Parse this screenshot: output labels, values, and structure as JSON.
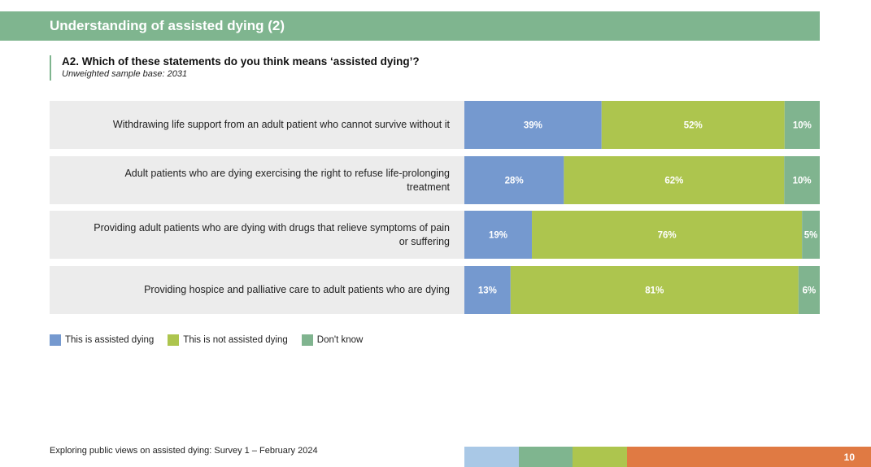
{
  "header": {
    "title": "Understanding of assisted dying (2)"
  },
  "question": {
    "text": "A2. Which of these statements do you think means ‘assisted dying’?",
    "base": "Unweighted sample base: 2031"
  },
  "legend": {
    "items": [
      {
        "label": "This is assisted dying",
        "color": "#7599cf"
      },
      {
        "label": "This is not assisted dying",
        "color": "#adc54e"
      },
      {
        "label": "Don't know",
        "color": "#80b48f"
      }
    ]
  },
  "chart_data": {
    "type": "bar",
    "orientation": "horizontal",
    "stacked": true,
    "normalized": true,
    "title": "A2. Which of these statements do you think means ‘assisted dying’?",
    "categories": [
      "Withdrawing life support from an adult patient who cannot survive without it",
      "Adult patients who are dying exercising the right to refuse life-prolonging treatment",
      "Providing adult patients who are dying with drugs that relieve symptoms of pain or suffering",
      "Providing hospice and palliative care to adult patients who are dying"
    ],
    "series": [
      {
        "name": "This is assisted dying",
        "values": [
          39,
          28,
          19,
          13
        ],
        "labels": [
          "39%",
          "28%",
          "19%",
          "13%"
        ],
        "color": "#7599cf"
      },
      {
        "name": "This is not assisted dying",
        "values": [
          52,
          62,
          76,
          81
        ],
        "labels": [
          "52%",
          "62%",
          "76%",
          "81%"
        ],
        "color": "#adc54e"
      },
      {
        "name": "Don't know",
        "values": [
          10,
          10,
          5,
          6
        ],
        "labels": [
          "10%",
          "10%",
          "5%",
          "6%"
        ],
        "color": "#80b48f"
      }
    ],
    "xlabel": "",
    "ylabel": "",
    "xlim": [
      0,
      100
    ],
    "legend_position": "bottom-left"
  },
  "footer": {
    "text": "Exploring public views on assisted dying: Survey 1 – February 2024",
    "page_number": "10",
    "strip_colors": [
      "#a9c8e6",
      "#7fb58f",
      "#adc54e",
      "#e07a43"
    ]
  }
}
